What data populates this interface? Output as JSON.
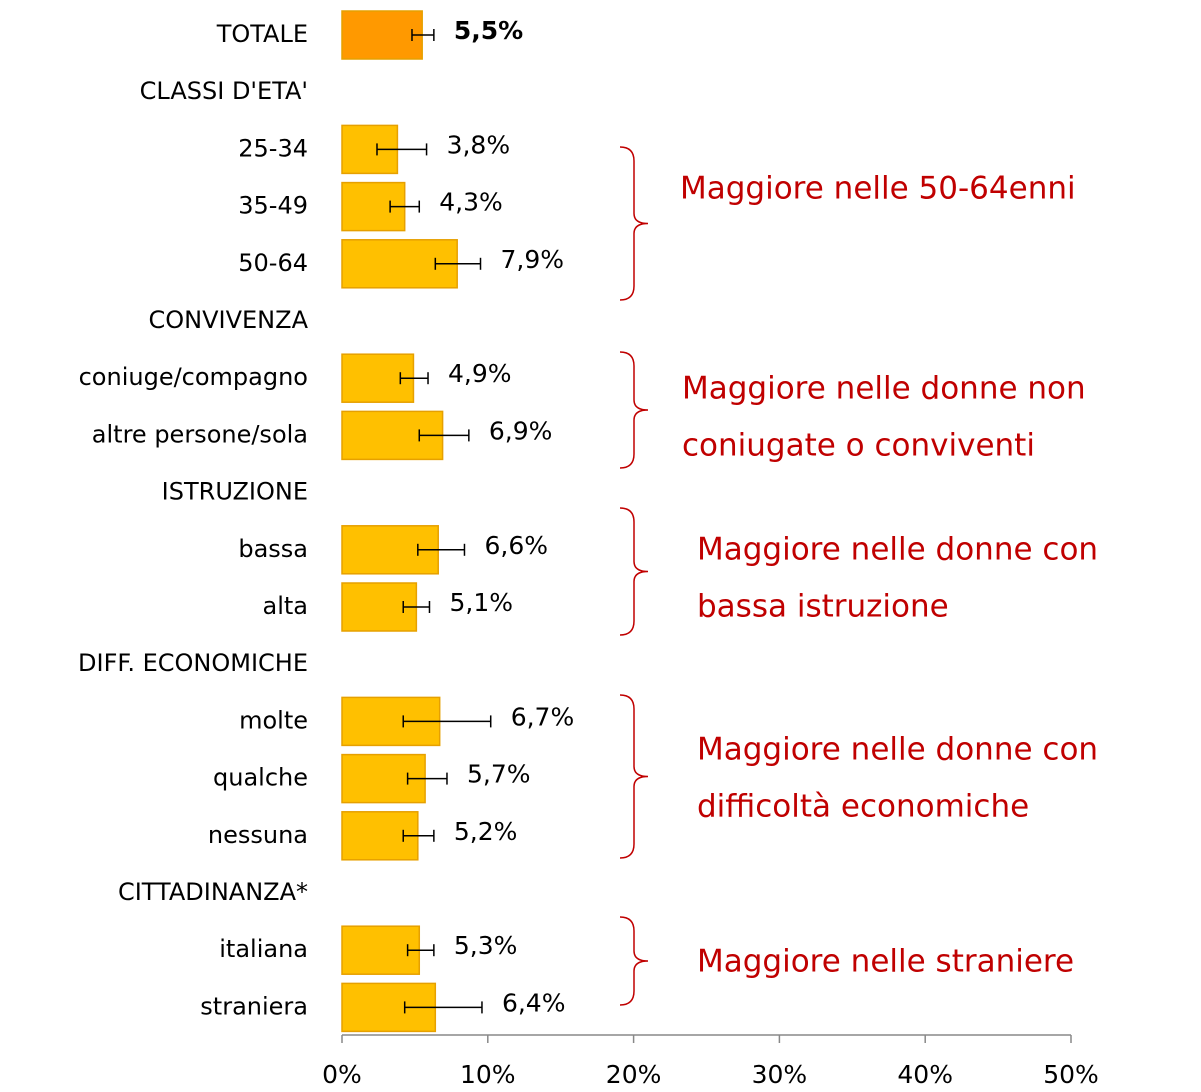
{
  "chart_data": {
    "type": "bar",
    "categories": [
      "TOTALE",
      "CLASSI D'ETA'",
      "25-34",
      "35-49",
      "50-64",
      "CONVIVENZA",
      "coniuge/compagno",
      "altre persone/sola",
      "ISTRUZIONE",
      "bassa",
      "alta",
      "DIFF. ECONOMICHE",
      "molte",
      "qualche",
      "nessuna",
      "CITTADINANZA*",
      "italiana",
      "straniera"
    ],
    "values": [
      5.5,
      null,
      3.8,
      4.3,
      7.9,
      null,
      4.9,
      6.9,
      null,
      6.6,
      5.1,
      null,
      6.7,
      5.7,
      5.2,
      null,
      5.3,
      6.4
    ],
    "value_labels": [
      "5,5%",
      null,
      "3,8%",
      "4,3%",
      "7,9%",
      null,
      "4,9%",
      "6,9%",
      null,
      "6,6%",
      "5,1%",
      null,
      "6,7%",
      "5,7%",
      "5,2%",
      null,
      "5,3%",
      "6,4%"
    ],
    "ci_low": [
      4.8,
      null,
      2.4,
      3.3,
      6.4,
      null,
      4.0,
      5.3,
      null,
      5.2,
      4.2,
      null,
      4.2,
      4.5,
      4.2,
      null,
      4.5,
      4.3
    ],
    "ci_high": [
      6.3,
      null,
      5.8,
      5.3,
      9.5,
      null,
      5.9,
      8.7,
      null,
      8.4,
      6.0,
      null,
      10.2,
      7.2,
      6.3,
      null,
      6.3,
      9.6
    ],
    "colors": [
      "#FF9900",
      null,
      "#FFC000",
      "#FFC000",
      "#FFC000",
      null,
      "#FFC000",
      "#FFC000",
      null,
      "#FFC000",
      "#FFC000",
      null,
      "#FFC000",
      "#FFC000",
      "#FFC000",
      null,
      "#FFC000",
      "#FFC000"
    ],
    "xlim": [
      0,
      50
    ],
    "xticks": [
      {
        "value": 0,
        "label": "0%"
      },
      {
        "value": 10,
        "label": "10%"
      },
      {
        "value": 20,
        "label": "20%"
      },
      {
        "value": 30,
        "label": "30%"
      },
      {
        "value": 40,
        "label": "40%"
      },
      {
        "value": 50,
        "label": "50%"
      }
    ],
    "annotations": [
      {
        "lines": [
          "Maggiore nelle 50-64enni"
        ]
      },
      {
        "lines": [
          "Maggiore nelle donne non",
          "coniugate o conviventi"
        ]
      },
      {
        "lines": [
          "Maggiore nelle donne con",
          "bassa istruzione"
        ]
      },
      {
        "lines": [
          "Maggiore nelle donne con",
          "difficoltà economiche"
        ]
      },
      {
        "lines": [
          "Maggiore nelle straniere"
        ]
      }
    ]
  }
}
